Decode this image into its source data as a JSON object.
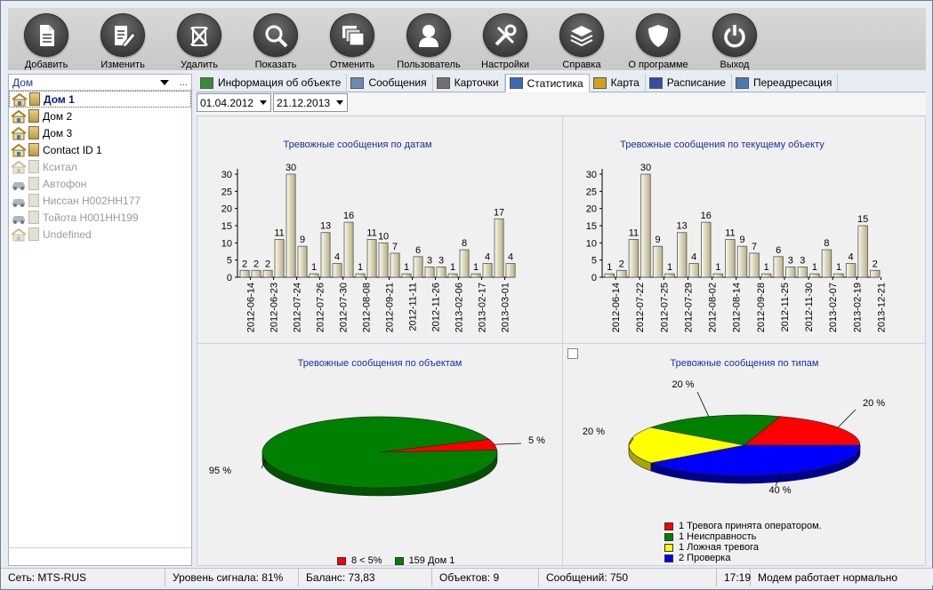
{
  "toolbar": [
    {
      "label": "Добавить",
      "icon": "document-icon"
    },
    {
      "label": "Изменить",
      "icon": "edit-icon"
    },
    {
      "label": "Удалить",
      "icon": "delete-icon"
    },
    {
      "label": "Показать",
      "icon": "search-icon"
    },
    {
      "label": "Отменить",
      "icon": "windows-icon"
    },
    {
      "label": "Пользователь",
      "icon": "user-icon"
    },
    {
      "label": "Настройки",
      "icon": "tools-icon"
    },
    {
      "label": "Справка",
      "icon": "layers-icon"
    },
    {
      "label": "О программе",
      "icon": "shield-icon"
    },
    {
      "label": "Выход",
      "icon": "power-icon"
    }
  ],
  "left": {
    "header": "Дом",
    "header_button": "...",
    "items": [
      {
        "label": "Дом 1",
        "type": "house",
        "state": "selected"
      },
      {
        "label": "Дом 2",
        "type": "house",
        "state": "normal"
      },
      {
        "label": "Дом 3",
        "type": "house",
        "state": "normal"
      },
      {
        "label": "Contact ID 1",
        "type": "house",
        "state": "normal"
      },
      {
        "label": "Кситал",
        "type": "house",
        "state": "grey"
      },
      {
        "label": "Автофон",
        "type": "car",
        "state": "grey"
      },
      {
        "label": "Ниссан Н002НН177",
        "type": "car",
        "state": "grey"
      },
      {
        "label": "Тойота Н001НН199",
        "type": "car",
        "state": "grey"
      },
      {
        "label": "Undefined",
        "type": "house",
        "state": "grey"
      }
    ]
  },
  "tabs": [
    {
      "label": "Информация об объекте",
      "active": false
    },
    {
      "label": "Сообщения",
      "active": false
    },
    {
      "label": "Карточки",
      "active": false
    },
    {
      "label": "Статистика",
      "active": true
    },
    {
      "label": "Карта",
      "active": false
    },
    {
      "label": "Расписание",
      "active": false
    },
    {
      "label": "Переадресация",
      "active": false
    }
  ],
  "dates": {
    "from": "01.04.2012",
    "to": "21.12.2013"
  },
  "chart_data": [
    {
      "type": "bar",
      "title": "Тревожные сообщения по датам",
      "ylim": [
        0,
        30
      ],
      "yticks": [
        0,
        5,
        10,
        15,
        20,
        25,
        30
      ],
      "tick_labels": [
        "2012-06-14",
        "2012-06-23",
        "2012-07-24",
        "2012-07-26",
        "2012-07-30",
        "2012-08-08",
        "2012-09-21",
        "2012-11-11",
        "2012-11-26",
        "2013-02-06",
        "2013-02-17",
        "2013-03-01"
      ],
      "values": [
        2,
        2,
        2,
        11,
        30,
        9,
        1,
        13,
        4,
        16,
        1,
        11,
        10,
        7,
        1,
        6,
        3,
        3,
        1,
        8,
        1,
        4,
        17,
        4
      ]
    },
    {
      "type": "bar",
      "title": "Тревожные сообщения по текущему объекту",
      "ylim": [
        0,
        30
      ],
      "yticks": [
        0,
        5,
        10,
        15,
        20,
        25,
        30
      ],
      "tick_labels": [
        "2012-06-14",
        "2012-07-22",
        "2012-07-25",
        "2012-07-29",
        "2012-08-02",
        "2012-08-14",
        "2012-09-28",
        "2012-11-25",
        "2012-11-30",
        "2013-02-07",
        "2013-02-19",
        "2013-12-21"
      ],
      "values": [
        1,
        2,
        11,
        30,
        9,
        1,
        13,
        4,
        16,
        1,
        11,
        9,
        7,
        1,
        6,
        3,
        3,
        1,
        8,
        1,
        4,
        15,
        2
      ]
    },
    {
      "type": "pie",
      "title": "Тревожные сообщения по объектам",
      "slices": [
        {
          "label": "5 %",
          "value": 5,
          "color": "#ff0000"
        },
        {
          "label": "95 %",
          "value": 95,
          "color": "#008000"
        }
      ],
      "legend": [
        {
          "text": "8 < 5%",
          "color": "#ff0000"
        },
        {
          "text": "159 Дом 1",
          "color": "#008000"
        }
      ]
    },
    {
      "type": "pie",
      "title": "Тревожные сообщения по типам",
      "slices": [
        {
          "label": "20 %",
          "value": 20,
          "color": "#ff0000"
        },
        {
          "label": "40 %",
          "value": 40,
          "color": "#0000ff"
        },
        {
          "label": "20 %",
          "value": 20,
          "color": "#ffff00"
        },
        {
          "label": "20 %",
          "value": 20,
          "color": "#008000"
        }
      ],
      "legend": [
        {
          "text": "1 Тревога принята оператором.",
          "color": "#ff0000"
        },
        {
          "text": "1 Неисправность",
          "color": "#008000"
        },
        {
          "text": "1 Ложная тревога",
          "color": "#ffff00"
        },
        {
          "text": "2 Проверка",
          "color": "#0000ff"
        }
      ]
    }
  ],
  "status": {
    "network": "Сеть: MTS-RUS",
    "signal": "Уровень сигнала: 81%",
    "balance": "Баланс: 73,83",
    "objects": "Объектов: 9",
    "messages": "Сообщений: 750",
    "time": "17:19",
    "modem": "Модем работает нормально"
  }
}
